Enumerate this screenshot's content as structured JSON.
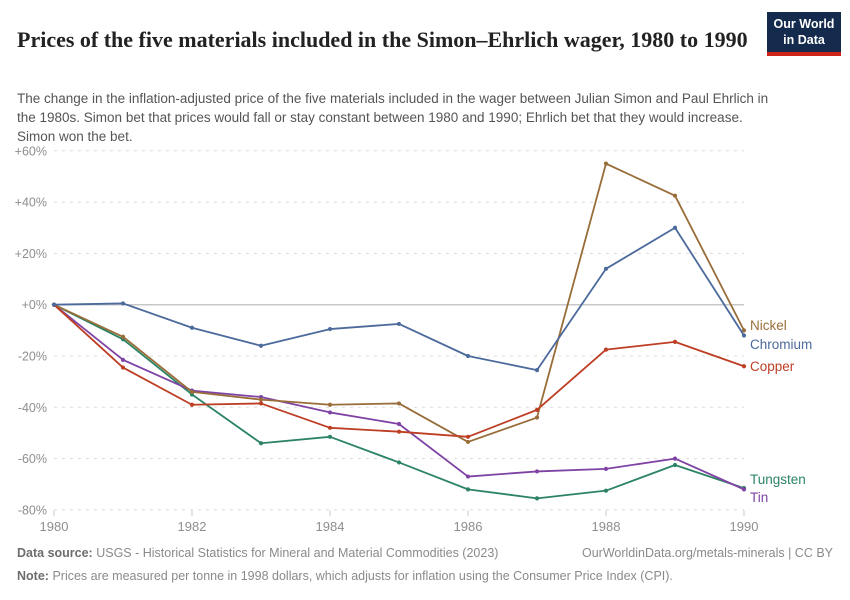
{
  "header": {
    "title": "Prices of the five materials included in the Simon–Ehrlich wager, 1980 to 1990",
    "subtitle": "The change in the inflation-adjusted price of the five materials included in the wager between Julian Simon and Paul Ehrlich in the 1980s. Simon bet that prices would fall or stay constant between 1980 and 1990; Ehrlich bet that they would increase. Simon won the bet.",
    "logo": {
      "line1": "Our World",
      "line2": "in Data",
      "bg_color": "#142B4D",
      "accent_color": "#CD2319",
      "text_color": "#FFFFFF"
    }
  },
  "chart_data": {
    "type": "line",
    "title": "Prices of the five materials included in the Simon–Ehrlich wager, 1980 to 1990",
    "x": [
      1980,
      1981,
      1982,
      1983,
      1984,
      1985,
      1986,
      1987,
      1988,
      1989,
      1990
    ],
    "x_ticks": [
      1980,
      1982,
      1984,
      1986,
      1988,
      1990
    ],
    "x_tick_labels": [
      "1980",
      "1982",
      "1984",
      "1986",
      "1988",
      "1990"
    ],
    "y_ticks": [
      60,
      40,
      20,
      0,
      -20,
      -40,
      -60,
      -80
    ],
    "y_tick_labels": [
      "+60%",
      "+40%",
      "+20%",
      "+0%",
      "-20%",
      "-40%",
      "-60%",
      "-80%"
    ],
    "xlim": [
      1980,
      1990
    ],
    "ylim": [
      -80,
      60
    ],
    "unit": "%",
    "grid": "horizontal-dashed",
    "zero_line": true,
    "legend_position": "right-end-labels",
    "series": [
      {
        "name": "Nickel",
        "color": "#996D39",
        "values": [
          0,
          -12.5,
          -34,
          -37,
          -39,
          -38.5,
          -53.5,
          -44,
          55,
          42.5,
          -10
        ]
      },
      {
        "name": "Chromium",
        "color": "#4C6A9C",
        "values": [
          0,
          0.5,
          -9,
          -16,
          -9.5,
          -7.5,
          -20,
          -25.5,
          14,
          30,
          -12
        ]
      },
      {
        "name": "Copper",
        "color": "#BD3E23",
        "values": [
          0,
          -24.5,
          -39,
          -38.5,
          -48,
          -49.5,
          -51.5,
          -41,
          -17.5,
          -14.5,
          -24
        ]
      },
      {
        "name": "Tungsten",
        "color": "#2C8465",
        "values": [
          0,
          -13.5,
          -35,
          -54,
          -51.5,
          -61.5,
          -72,
          -75.5,
          -72.5,
          -62.5,
          -71.5
        ]
      },
      {
        "name": "Tin",
        "color": "#7E43A4",
        "values": [
          0,
          -21.5,
          -33.5,
          -36,
          -42,
          -46.5,
          -67,
          -65,
          -64,
          -60,
          -72
        ]
      }
    ]
  },
  "footer": {
    "source_label": "Data source:",
    "source_text": "USGS - Historical Statistics for Mineral and Material Commodities (2023)",
    "attribution": "OurWorldinData.org/metals-minerals | CC BY",
    "note_label": "Note:",
    "note_text": "Prices are measured per tonne in 1998 dollars, which adjusts for inflation using the Consumer Price Index (CPI)."
  }
}
